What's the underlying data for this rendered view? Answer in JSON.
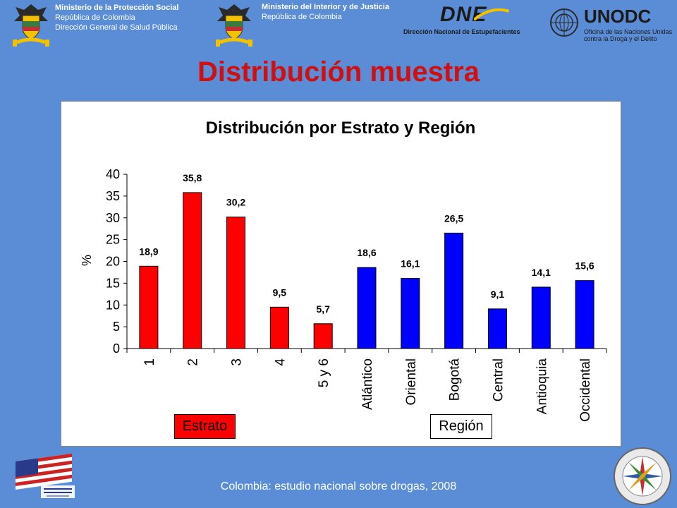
{
  "header": {
    "ministry1_line1": "Ministerio de la Protección Social",
    "ministry1_line2": "República de Colombia",
    "ministry1_line3": "Dirección General de Salud Pública",
    "ministry2_line1": "Ministerio del Interior y de Justicia",
    "ministry2_line2": "República de Colombia",
    "dne_logo": "DNE",
    "dne_subtitle": "Dirección Nacional de Estupefacientes",
    "unodc_logo": "UNODC",
    "unodc_line1": "Oficina de las Naciones Unidas",
    "unodc_line2": "contra la Droga y el Delito"
  },
  "page_title": "Distribución muestra",
  "footer_text": "Colombia: estudio nacional sobre drogas, 2008",
  "group_labels": {
    "estrato": "Estrato",
    "region": "Región"
  },
  "colors": {
    "estrato": "#ff0000",
    "region": "#0000ff",
    "background": "#5b8dd6",
    "title": "#d01010"
  },
  "chart_data": {
    "type": "bar",
    "title": "Distribución por Estrato y Región",
    "ylabel": "%",
    "xlabel": "",
    "ylim": [
      0,
      40
    ],
    "yticks": [
      0,
      5,
      10,
      15,
      20,
      25,
      30,
      35,
      40
    ],
    "categories": [
      "1",
      "2",
      "3",
      "4",
      "5 y 6",
      "Atlántico",
      "Oriental",
      "Bogotá",
      "Central",
      "Antioquia",
      "Occidental"
    ],
    "value_labels": [
      "18,9",
      "35,8",
      "30,2",
      "9,5",
      "5,7",
      "18,6",
      "16,1",
      "26,5",
      "9,1",
      "14,1",
      "15,6"
    ],
    "values": [
      18.9,
      35.8,
      30.2,
      9.5,
      5.7,
      18.6,
      16.1,
      26.5,
      9.1,
      14.1,
      15.6
    ],
    "groups": [
      "estrato",
      "estrato",
      "estrato",
      "estrato",
      "estrato",
      "region",
      "region",
      "region",
      "region",
      "region",
      "region"
    ],
    "grid": false
  }
}
